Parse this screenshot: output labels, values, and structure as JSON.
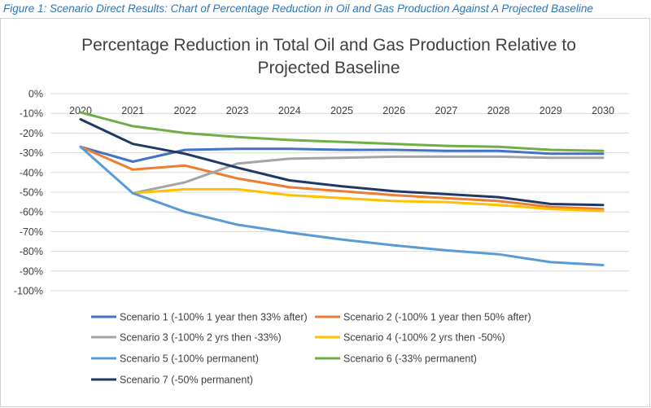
{
  "caption": "Figure 1: Scenario Direct Results: Chart of Percentage Reduction in Oil and Gas Production Against A Projected Baseline",
  "chart_data": {
    "type": "line",
    "title_line1": "Percentage Reduction in Total Oil and Gas Production Relative to",
    "title_line2": "Projected Baseline",
    "x": [
      "2020",
      "2021",
      "2022",
      "2023",
      "2024",
      "2025",
      "2026",
      "2027",
      "2028",
      "2029",
      "2030"
    ],
    "yticks": [
      "0%",
      "-10%",
      "-20%",
      "-30%",
      "-40%",
      "-50%",
      "-60%",
      "-70%",
      "-80%",
      "-90%",
      "-100%"
    ],
    "ylim": [
      -100,
      0
    ],
    "grid": true,
    "legend_position": "bottom",
    "series": [
      {
        "name": "Scenario 1 (-100% 1 year then 33% after)",
        "color": "#4472c4",
        "values": [
          -27,
          -34.5,
          -28.5,
          -28,
          -28,
          -28.5,
          -28.5,
          -29,
          -29,
          -30.5,
          -30.5
        ]
      },
      {
        "name": "Scenario 2 (-100% 1 year then 50% after)",
        "color": "#ed7d31",
        "values": [
          -27,
          -38.5,
          -36.5,
          -43,
          -47.5,
          -49.5,
          -51.5,
          -53,
          -54.5,
          -57.5,
          -58.5
        ]
      },
      {
        "name": "Scenario 3 (-100% 2 yrs then -33%)",
        "color": "#a5a5a5",
        "values": [
          null,
          -50.5,
          -45,
          -35.5,
          -33,
          -32.5,
          -32,
          -32,
          -32,
          -32.5,
          -32.5
        ]
      },
      {
        "name": "Scenario 4 (-100% 2 yrs then -50%)",
        "color": "#ffc000",
        "values": [
          null,
          -50.5,
          -48.5,
          -48.5,
          -51.5,
          -53,
          -54.5,
          -55,
          -56.5,
          -58.5,
          -59.5
        ]
      },
      {
        "name": "Scenario 5 (-100% permanent)",
        "color": "#5b9bd5",
        "values": [
          -27,
          -50.5,
          -60,
          -66.5,
          -70.5,
          -74,
          -77,
          -79.5,
          -81.5,
          -85.5,
          -87
        ]
      },
      {
        "name": "Scenario 6 (-33% permanent)",
        "color": "#70ad47",
        "values": [
          -9.5,
          -16.5,
          -20,
          -22,
          -23.5,
          -24.5,
          -25.5,
          -26.5,
          -27,
          -28.5,
          -29
        ]
      },
      {
        "name": "Scenario 7 (-50% permanent)",
        "color": "#203864",
        "values": [
          -13,
          -25.5,
          -30.5,
          -37.5,
          -44,
          -47,
          -49.5,
          -51,
          -52.5,
          -56,
          -56.5
        ]
      }
    ]
  }
}
